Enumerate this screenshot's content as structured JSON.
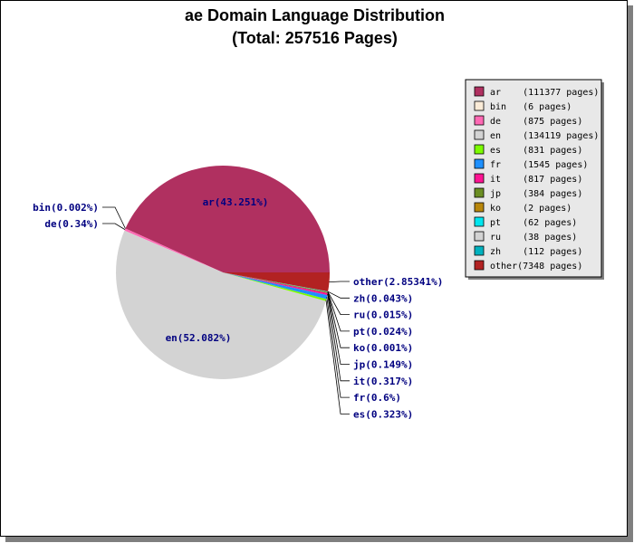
{
  "chart_data": {
    "type": "pie",
    "title": "ae Domain Language Distribution",
    "subtitle": "(Total: 257516 Pages)",
    "legend_position": "top-right",
    "slices": [
      {
        "name": "ar",
        "pages": 111377,
        "legend": "ar    (111377 pages)",
        "label": "ar(43.251%)",
        "color": "#b03060"
      },
      {
        "name": "bin",
        "pages": 6,
        "legend": "bin   (6 pages)",
        "label": "bin(0.002%)",
        "color": "#faebd7"
      },
      {
        "name": "de",
        "pages": 875,
        "legend": "de    (875 pages)",
        "label": "de(0.34%)",
        "color": "#ff69b4"
      },
      {
        "name": "en",
        "pages": 134119,
        "legend": "en    (134119 pages)",
        "label": "en(52.082%)",
        "color": "#d3d3d3"
      },
      {
        "name": "es",
        "pages": 831,
        "legend": "es    (831 pages)",
        "label": "es(0.323%)",
        "color": "#7cfc00"
      },
      {
        "name": "fr",
        "pages": 1545,
        "legend": "fr    (1545 pages)",
        "label": "fr(0.6%)",
        "color": "#1e90ff"
      },
      {
        "name": "it",
        "pages": 817,
        "legend": "it    (817 pages)",
        "label": "it(0.317%)",
        "color": "#ff1493"
      },
      {
        "name": "jp",
        "pages": 384,
        "legend": "jp    (384 pages)",
        "label": "jp(0.149%)",
        "color": "#6b8e23"
      },
      {
        "name": "ko",
        "pages": 2,
        "legend": "ko    (2 pages)",
        "label": "ko(0.001%)",
        "color": "#b8860b"
      },
      {
        "name": "pt",
        "pages": 62,
        "legend": "pt    (62 pages)",
        "label": "pt(0.024%)",
        "color": "#00e5ee"
      },
      {
        "name": "ru",
        "pages": 38,
        "legend": "ru    (38 pages)",
        "label": "ru(0.015%)",
        "color": "#d3d3d3"
      },
      {
        "name": "zh",
        "pages": 112,
        "legend": "zh    (112 pages)",
        "label": "zh(0.043%)",
        "color": "#00b2bf"
      },
      {
        "name": "other",
        "pages": 7348,
        "legend": "other(7348 pages)",
        "label": "other(2.85341%)",
        "color": "#b22222"
      }
    ]
  }
}
